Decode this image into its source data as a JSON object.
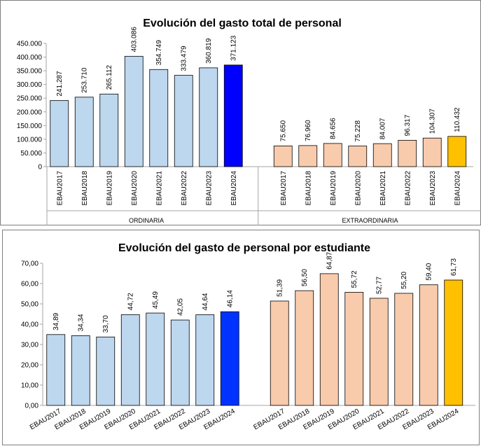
{
  "chart_data": [
    {
      "type": "bar",
      "title": "Evolución del gasto total de personal",
      "ylim": [
        0,
        450000
      ],
      "yticks": [
        "0",
        "50.000",
        "100.000",
        "150.000",
        "200.000",
        "250.000",
        "300.000",
        "350.000",
        "400.000",
        "450.000"
      ],
      "groups": [
        {
          "name": "ORDINARIA",
          "categories": [
            "EBAU2017",
            "EBAU2018",
            "EBAU2019",
            "EBAU2020",
            "EBAU2021",
            "EBAU2022",
            "EBAU2023",
            "EBAU2024"
          ],
          "values": [
            241287,
            253710,
            265112,
            403086,
            354749,
            333479,
            360819,
            371123
          ],
          "labels": [
            "241.287",
            "253.710",
            "265.112",
            "403.086",
            "354.749",
            "333.479",
            "360.819",
            "371.123"
          ],
          "color": "#bdd7ee",
          "highlight_color": "#0000ff"
        },
        {
          "name": "EXTRAORDINARIA",
          "categories": [
            "EBAU2017",
            "EBAU2018",
            "EBAU2019",
            "EBAU2020",
            "EBAU2021",
            "EBAU2022",
            "EBAU2023",
            "EBAU2024"
          ],
          "values": [
            75650,
            76960,
            84656,
            75228,
            84007,
            96317,
            104307,
            110432
          ],
          "labels": [
            "75.650",
            "76.960",
            "84.656",
            "75.228",
            "84.007",
            "96.317",
            "104.307",
            "110.432"
          ],
          "color": "#f8cbad",
          "highlight_color": "#ffc000"
        }
      ],
      "grid": false,
      "legend": "none"
    },
    {
      "type": "bar",
      "title": "Evolución del gasto de personal por estudiante",
      "ylim": [
        0,
        70
      ],
      "yticks": [
        "0,00",
        "10,00",
        "20,00",
        "30,00",
        "40,00",
        "50,00",
        "60,00",
        "70,00"
      ],
      "groups": [
        {
          "name": "",
          "categories": [
            "EBAU2017",
            "EBAU2018",
            "EBAU2019",
            "EBAU2020",
            "EBAU2021",
            "EBAU2022",
            "EBAU2023",
            "EBAU2024"
          ],
          "values": [
            34.89,
            34.34,
            33.7,
            44.72,
            45.49,
            42.05,
            44.64,
            46.14
          ],
          "labels": [
            "34,89",
            "34,34",
            "33,70",
            "44,72",
            "45,49",
            "42,05",
            "44,64",
            "46,14"
          ],
          "color": "#bdd7ee",
          "highlight_color": "#0033ff"
        },
        {
          "name": "",
          "categories": [
            "EBAU2017",
            "EBAU2018",
            "EBAU2019",
            "EBAU2020",
            "EBAU2021",
            "EBAU2022",
            "EBAU2023",
            "EBAU2024"
          ],
          "values": [
            51.39,
            56.5,
            64.87,
            55.72,
            52.77,
            55.2,
            59.4,
            61.73
          ],
          "labels": [
            "51,39",
            "56,50",
            "64,87",
            "55,72",
            "52,77",
            "55,20",
            "59,40",
            "61,73"
          ],
          "color": "#f8cbad",
          "highlight_color": "#ffc000"
        }
      ],
      "grid": false,
      "legend": "none"
    }
  ]
}
